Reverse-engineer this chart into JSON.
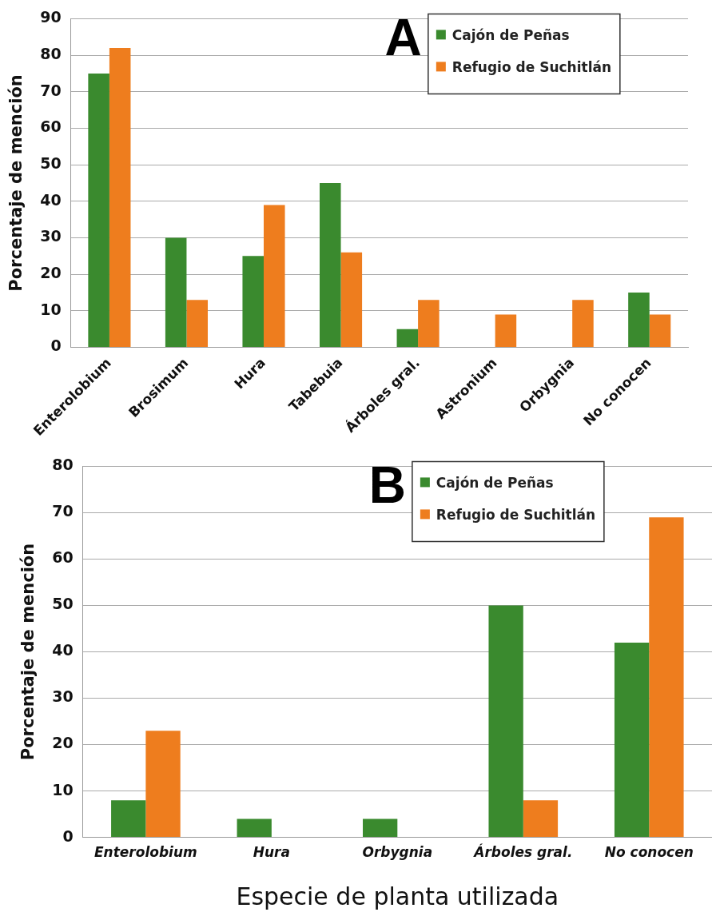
{
  "chart_data": [
    {
      "type": "bar",
      "title": "A",
      "ylabel": "Porcentaje de mención",
      "categories": [
        "Enterolobium",
        "Brosimum",
        "Hura",
        "Tabebuia",
        "Árboles gral.",
        "Astronium",
        "Orbygnia",
        "No conocen"
      ],
      "series": [
        {
          "name": "Cajón de Peñas",
          "color": "#3a8a2e",
          "values": [
            75,
            30,
            25,
            45,
            5,
            0,
            0,
            15
          ]
        },
        {
          "name": "Refugio de Suchitlán",
          "color": "#ee7d1e",
          "values": [
            82,
            13,
            39,
            26,
            13,
            9,
            13,
            9
          ]
        }
      ],
      "ylim": [
        0,
        90
      ],
      "yticks": [
        0,
        10,
        20,
        30,
        40,
        50,
        60,
        70,
        80,
        90
      ],
      "grid": "y",
      "legend": "top right"
    },
    {
      "type": "bar",
      "title": "B",
      "ylabel": "Porcentaje de mención",
      "xlabel": "Especie de planta utilizada",
      "categories": [
        "Enterolobium",
        "Hura",
        "Orbygnia",
        "Árboles gral.",
        "No conocen"
      ],
      "series": [
        {
          "name": "Cajón de Peñas",
          "color": "#3a8a2e",
          "values": [
            8,
            4,
            4,
            50,
            42
          ]
        },
        {
          "name": "Refugio de Suchitlán",
          "color": "#ee7d1e",
          "values": [
            23,
            0,
            0,
            8,
            69
          ]
        }
      ],
      "ylim": [
        0,
        80
      ],
      "yticks": [
        0,
        10,
        20,
        30,
        40,
        50,
        60,
        70,
        80
      ],
      "grid": "y",
      "legend": "top right"
    }
  ]
}
